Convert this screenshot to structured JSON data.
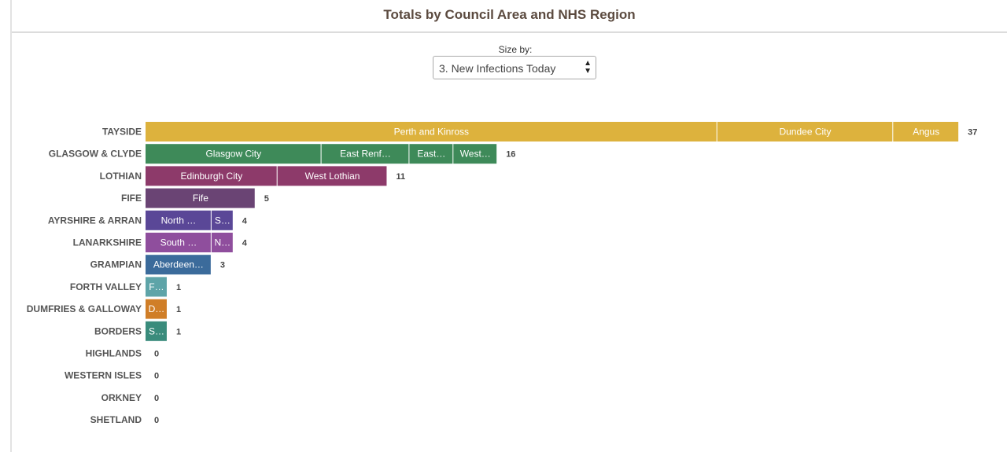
{
  "header": {
    "title": "Totals by Council Area and NHS Region"
  },
  "controls": {
    "size_by_label": "Size by:",
    "size_by_value": "3. New Infections Today"
  },
  "chart_data": {
    "type": "bar",
    "orientation": "horizontal",
    "stacked": true,
    "title": "Totals by Council Area and NHS Region",
    "regions": [
      {
        "name": "TAYSIDE",
        "total": 37,
        "color": "#ddb23d",
        "segments": [
          {
            "label": "Perth and Kinross",
            "value": 26
          },
          {
            "label": "Dundee City",
            "value": 8
          },
          {
            "label": "Angus",
            "value": 3
          }
        ]
      },
      {
        "name": "GLASGOW & CLYDE",
        "total": 16,
        "color": "#3e8a59",
        "segments": [
          {
            "label": "Glasgow City",
            "value": 8
          },
          {
            "label": "East Renf…",
            "value": 4
          },
          {
            "label": "East…",
            "value": 2
          },
          {
            "label": "West…",
            "value": 2
          }
        ]
      },
      {
        "name": "LOTHIAN",
        "total": 11,
        "color": "#8d3a6a",
        "segments": [
          {
            "label": "Edinburgh City",
            "value": 6
          },
          {
            "label": "West Lothian",
            "value": 5
          }
        ]
      },
      {
        "name": "FIFE",
        "total": 5,
        "color": "#6a4474",
        "segments": [
          {
            "label": "Fife",
            "value": 5
          }
        ]
      },
      {
        "name": "AYRSHIRE & ARRAN",
        "total": 4,
        "color": "#5a4797",
        "segments": [
          {
            "label": "North …",
            "value": 3
          },
          {
            "label": "S…",
            "value": 1
          }
        ]
      },
      {
        "name": "LANARKSHIRE",
        "total": 4,
        "color": "#8f4e9d",
        "segments": [
          {
            "label": "South …",
            "value": 3
          },
          {
            "label": "N…",
            "value": 1
          }
        ]
      },
      {
        "name": "GRAMPIAN",
        "total": 3,
        "color": "#3b6b9b",
        "segments": [
          {
            "label": "Aberdeen…",
            "value": 3
          }
        ]
      },
      {
        "name": "FORTH VALLEY",
        "total": 1,
        "color": "#5ea4a8",
        "segments": [
          {
            "label": "F…",
            "value": 1
          }
        ]
      },
      {
        "name": "DUMFRIES & GALLOWAY",
        "total": 1,
        "color": "#d07e27",
        "segments": [
          {
            "label": "D…",
            "value": 1
          }
        ]
      },
      {
        "name": "BORDERS",
        "total": 1,
        "color": "#3a8c7c",
        "segments": [
          {
            "label": "S…",
            "value": 1
          }
        ]
      },
      {
        "name": "HIGHLANDS",
        "total": 0,
        "color": "#888888",
        "segments": []
      },
      {
        "name": "WESTERN ISLES",
        "total": 0,
        "color": "#888888",
        "segments": []
      },
      {
        "name": "ORKNEY",
        "total": 0,
        "color": "#888888",
        "segments": []
      },
      {
        "name": "SHETLAND",
        "total": 0,
        "color": "#888888",
        "segments": []
      }
    ]
  }
}
